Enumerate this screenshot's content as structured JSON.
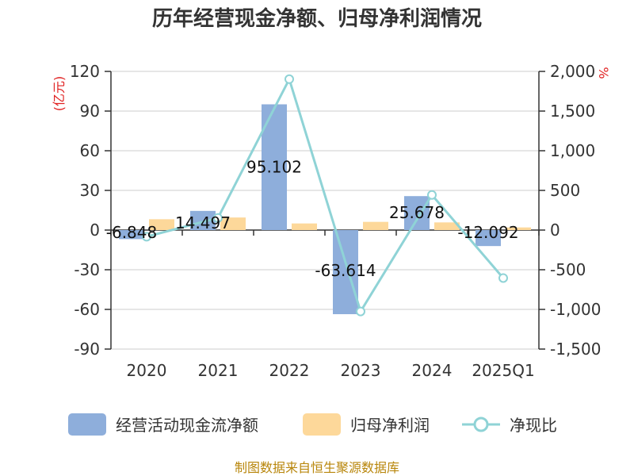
{
  "chart_data": {
    "type": "bar",
    "title": "历年经营现金净额、归母净利润情况",
    "categories": [
      "2020",
      "2021",
      "2022",
      "2023",
      "2024",
      "2025Q1"
    ],
    "left_axis": {
      "unit": "(亿元)",
      "ylim": [
        -90,
        120
      ],
      "ticks": [
        "120",
        "90",
        "60",
        "30",
        "0",
        "-30",
        "-60",
        "-90"
      ]
    },
    "right_axis": {
      "unit": "%",
      "ylim": [
        -1500,
        2000
      ],
      "ticks": [
        "2,000",
        "1,500",
        "1,000",
        "500",
        "0",
        "-500",
        "-1,000",
        "-1,500"
      ]
    },
    "series": [
      {
        "name": "经营活动现金流净额",
        "type": "bar",
        "axis": "left",
        "color": "#8eaedb",
        "values": [
          -6.848,
          14.497,
          95.102,
          -63.614,
          25.678,
          -12.092
        ],
        "labels": [
          "-6.848",
          "14.497",
          "95.102",
          "-63.614",
          "25.678",
          "-12.092"
        ]
      },
      {
        "name": "归母净利润",
        "type": "bar",
        "axis": "left",
        "color": "#fdd89a",
        "values": [
          8.2,
          9.5,
          5.0,
          6.2,
          5.8,
          2.0
        ]
      },
      {
        "name": "净现比",
        "type": "line",
        "axis": "right",
        "color": "#8fd3d6",
        "values": [
          -83.5,
          152.6,
          1902.0,
          -1026.0,
          442.7,
          -604.6
        ]
      }
    ],
    "grid": true,
    "legend_position": "bottom"
  },
  "source_text": "制图数据来自恒生聚源数据库"
}
